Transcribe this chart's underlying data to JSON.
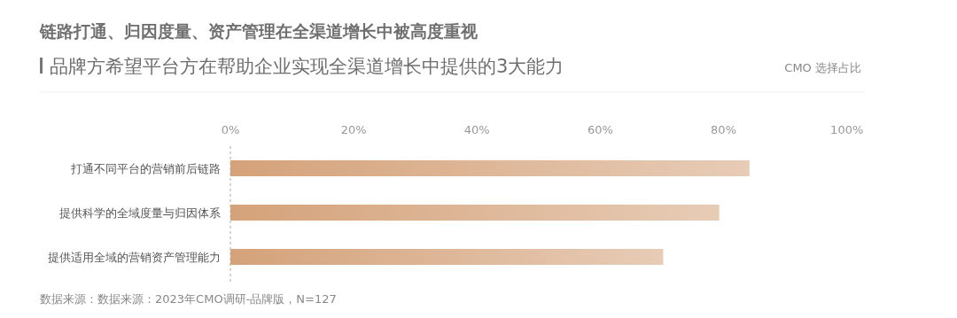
{
  "chart_data": {
    "type": "bar",
    "orientation": "horizontal",
    "title": "链路打通、归因度量、资产管理在全渠道增长中被高度重视",
    "subtitle": "品牌方希望平台方在帮助企业实现全渠道增长中提供的3大能力",
    "categories": [
      "打通不同平台的营销前后链路",
      "提供科学的全域度量与归因体系",
      "提供适用全域的营销资产管理能力"
    ],
    "values": [
      84.2,
      79.3,
      70.2
    ],
    "color": "#d4a27a",
    "xlim": [
      0,
      100
    ],
    "xticks": [
      {
        "value": 0,
        "label": "0%"
      },
      {
        "value": 20,
        "label": "20%"
      },
      {
        "value": 40,
        "label": "40%"
      },
      {
        "value": 60,
        "label": "60%"
      },
      {
        "value": 80,
        "label": "80%"
      },
      {
        "value": 100,
        "label": "100%"
      }
    ],
    "grid": false,
    "annotations": [
      "CMO 选择占比",
      "数据来源：数据来源：2023年CMO调研-品牌版，N=127"
    ]
  }
}
